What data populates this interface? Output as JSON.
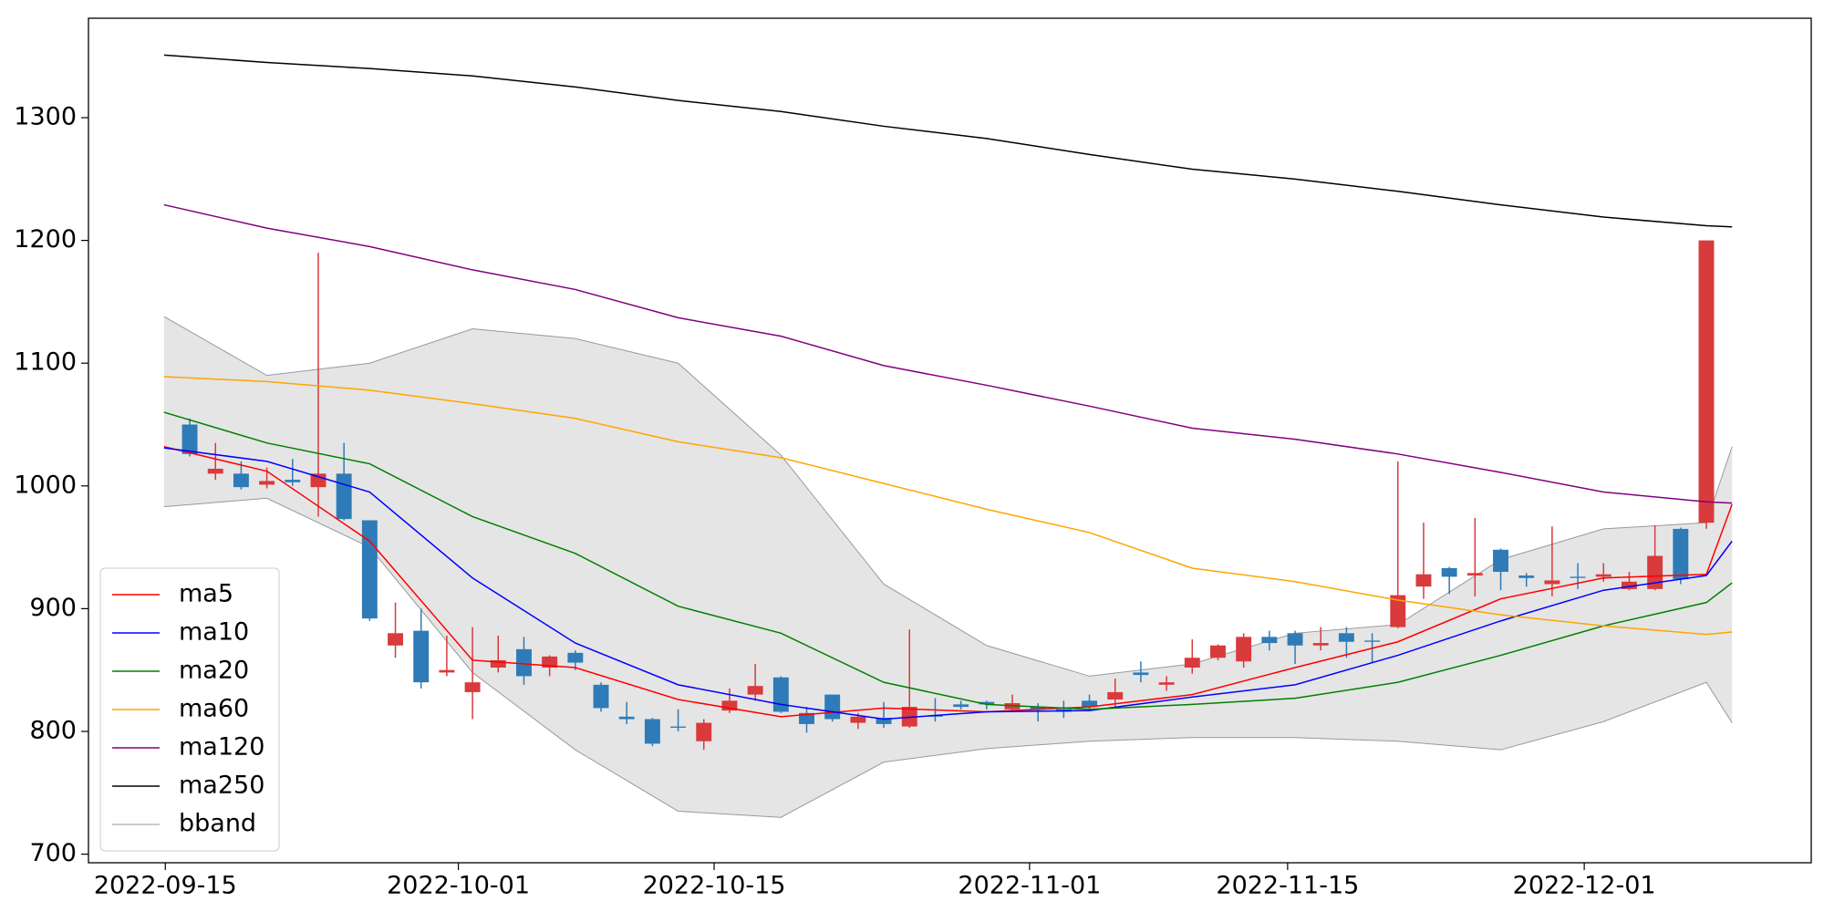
{
  "chart_data": {
    "type": "candlestick",
    "x": [
      0,
      1,
      2,
      3,
      4,
      5,
      6,
      7,
      8,
      9,
      10,
      11,
      12,
      13,
      14,
      15,
      16,
      17,
      18,
      19,
      20,
      21,
      22,
      23,
      24,
      25,
      26,
      27,
      28,
      29,
      30,
      31,
      32,
      33,
      34,
      35,
      36,
      37,
      38,
      39,
      40,
      41,
      42,
      43,
      44,
      45,
      46,
      47,
      48,
      49,
      50,
      51,
      52,
      53,
      54,
      55,
      56,
      57,
      58,
      59
    ],
    "open": [
      1050,
      1010,
      1010,
      1001,
      1005,
      999,
      1010,
      972,
      870,
      882,
      848,
      832,
      852,
      867,
      852,
      864,
      838,
      812,
      810,
      804,
      792,
      817,
      830,
      844,
      815,
      830,
      807,
      811,
      804,
      813,
      822,
      824,
      818,
      820,
      818,
      825,
      826,
      848,
      838,
      852,
      860,
      857,
      877,
      880,
      870,
      880,
      874,
      885,
      918,
      933,
      927,
      948,
      927,
      920,
      926,
      926,
      916,
      916,
      965,
      970
    ],
    "high": [
      1055,
      1035,
      1020,
      1015,
      1022,
      1190,
      1035,
      972,
      905,
      900,
      878,
      885,
      878,
      877,
      862,
      866,
      840,
      824,
      811,
      818,
      810,
      835,
      855,
      845,
      820,
      830,
      815,
      824,
      883,
      827,
      825,
      825,
      830,
      823,
      825,
      830,
      843,
      857,
      845,
      875,
      871,
      880,
      882,
      882,
      885,
      885,
      880,
      1020,
      970,
      934,
      974,
      949,
      929,
      967,
      937,
      937,
      930,
      968,
      966,
      1200
    ],
    "low": [
      1024,
      1005,
      997,
      998,
      1000,
      975,
      972,
      890,
      860,
      835,
      845,
      810,
      848,
      838,
      845,
      850,
      816,
      806,
      788,
      800,
      785,
      815,
      825,
      815,
      799,
      808,
      802,
      803,
      803,
      808,
      818,
      818,
      816,
      808,
      811,
      818,
      820,
      840,
      833,
      847,
      858,
      852,
      866,
      855,
      866,
      860,
      856,
      884,
      908,
      912,
      910,
      915,
      918,
      910,
      916,
      922,
      915,
      915,
      920,
      965
    ],
    "close": [
      1026,
      1014,
      999,
      1004,
      1003,
      1010,
      973,
      892,
      880,
      840,
      850,
      840,
      858,
      845,
      861,
      856,
      819,
      810,
      790,
      803,
      807,
      825,
      837,
      816,
      806,
      810,
      812,
      806,
      820,
      812,
      820,
      822,
      823,
      818,
      816,
      820,
      832,
      846,
      840,
      860,
      870,
      877,
      872,
      870,
      872,
      873,
      873,
      911,
      928,
      926,
      929,
      930,
      925,
      923,
      925,
      928,
      922,
      943,
      924,
      1200
    ],
    "up_color": "#d93a3c",
    "down_color": "#2e7bb8",
    "series": [
      {
        "name": "ma5",
        "color": "#ff0000",
        "x": [
          -1,
          3,
          7,
          11,
          15,
          19,
          23,
          27,
          31,
          35,
          39,
          43,
          47,
          51,
          55,
          59,
          60
        ],
        "values": [
          1032,
          1012,
          955,
          858,
          852,
          826,
          812,
          819,
          816,
          820,
          830,
          852,
          873,
          908,
          925,
          928,
          985
        ]
      },
      {
        "name": "ma10",
        "color": "#0000ff",
        "x": [
          -1,
          3,
          7,
          11,
          15,
          19,
          23,
          27,
          31,
          35,
          39,
          43,
          47,
          51,
          55,
          59,
          60
        ],
        "values": [
          1031,
          1020,
          995,
          925,
          872,
          838,
          822,
          810,
          816,
          817,
          828,
          838,
          862,
          890,
          915,
          927,
          955
        ]
      },
      {
        "name": "ma20",
        "color": "#008000",
        "x": [
          -1,
          3,
          7,
          11,
          15,
          19,
          23,
          27,
          31,
          35,
          39,
          43,
          47,
          51,
          55,
          59,
          60
        ],
        "values": [
          1060,
          1035,
          1018,
          975,
          945,
          902,
          880,
          840,
          822,
          818,
          822,
          827,
          840,
          862,
          886,
          905,
          921
        ]
      },
      {
        "name": "ma60",
        "color": "#ffa500",
        "x": [
          -1,
          3,
          7,
          11,
          15,
          19,
          23,
          27,
          31,
          35,
          39,
          43,
          47,
          51,
          55,
          59,
          60
        ],
        "values": [
          1089,
          1085,
          1078,
          1067,
          1055,
          1036,
          1023,
          1002,
          981,
          962,
          933,
          922,
          907,
          895,
          886,
          879,
          881
        ]
      },
      {
        "name": "ma120",
        "color": "#800080",
        "x": [
          -1,
          3,
          7,
          11,
          15,
          19,
          23,
          27,
          31,
          35,
          39,
          43,
          47,
          51,
          55,
          59,
          60
        ],
        "values": [
          1229,
          1210,
          1195,
          1176,
          1160,
          1137,
          1122,
          1098,
          1082,
          1065,
          1047,
          1038,
          1026,
          1011,
          995,
          987,
          986
        ]
      },
      {
        "name": "ma250",
        "color": "#000000",
        "x": [
          -1,
          3,
          7,
          11,
          15,
          19,
          23,
          27,
          31,
          35,
          39,
          43,
          47,
          51,
          55,
          59,
          60
        ],
        "values": [
          1351,
          1345,
          1340,
          1334,
          1325,
          1314,
          1305,
          1293,
          1283,
          1270,
          1258,
          1250,
          1240,
          1229,
          1219,
          1212,
          1211
        ]
      }
    ],
    "band": {
      "name": "bband",
      "color": "#999999",
      "fill": "#e5e5e5",
      "x": [
        -1,
        3,
        7,
        11,
        15,
        19,
        23,
        27,
        31,
        35,
        39,
        43,
        47,
        51,
        55,
        59,
        60
      ],
      "upper": [
        1138,
        1090,
        1100,
        1128,
        1120,
        1100,
        1025,
        920,
        870,
        845,
        855,
        880,
        887,
        940,
        965,
        970,
        1032
      ],
      "lower": [
        983,
        990,
        950,
        848,
        785,
        735,
        730,
        775,
        786,
        792,
        795,
        795,
        792,
        785,
        808,
        840,
        807
      ]
    },
    "xlim": [
      -3.94,
      63.08
    ],
    "xticks": [
      {
        "value": -0.95,
        "label": "2022-09-15"
      },
      {
        "value": 10.45,
        "label": "2022-10-01"
      },
      {
        "value": 20.4,
        "label": "2022-10-15"
      },
      {
        "value": 32.67,
        "label": "2022-11-01"
      },
      {
        "value": 42.71,
        "label": "2022-11-15"
      },
      {
        "value": 54.25,
        "label": "2022-12-01"
      }
    ],
    "ylim": [
      693,
      1381
    ],
    "yticks": [
      700,
      800,
      900,
      1000,
      1100,
      1200,
      1300
    ],
    "legend": "lower left"
  }
}
